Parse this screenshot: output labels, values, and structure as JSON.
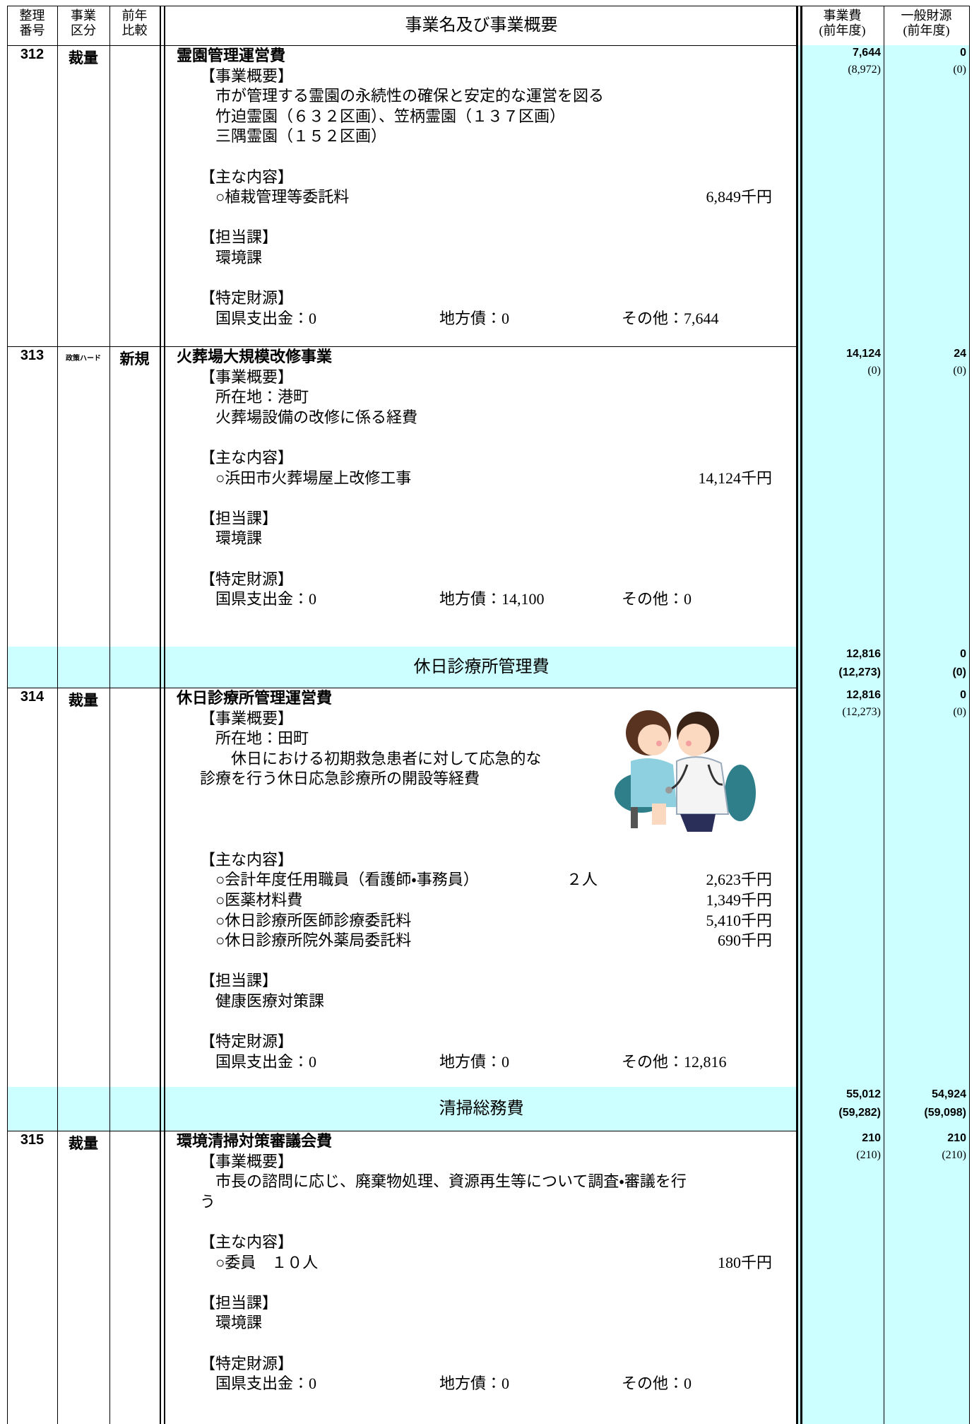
{
  "header": {
    "no": [
      "整理",
      "番号"
    ],
    "kubun": [
      "事業",
      "区分"
    ],
    "hikaku": [
      "前年",
      "比較"
    ],
    "title": "事業名及び事業概要",
    "cost": [
      "事業費",
      "(前年度)"
    ],
    "general": [
      "一般財源",
      "(前年度)"
    ]
  },
  "rows": [
    {
      "no": "312",
      "kubun": "裁量",
      "title": "霊園管理運営費",
      "cost": "7,644",
      "cost_prev": "(8,972)",
      "general": "0",
      "general_prev": "(0)",
      "overview": {
        "heading": "【事業概要】",
        "lines": [
          "　市が管理する霊園の永続性の確保と安定的な運営を図る",
          "　竹迫霊園（６３２区画）、笠柄霊園（１３７区画）",
          "　三隅霊園（１５２区画）"
        ]
      },
      "contents": {
        "heading": "【主な内容】",
        "items": [
          {
            "label": "○植栽管理等委託料",
            "amount": "6,849千円"
          }
        ]
      },
      "dept": {
        "heading": "【担当課】",
        "name": "環境課"
      },
      "funding": {
        "heading": "【特定財源】",
        "items": [
          "国県支出金：0",
          "地方債：0",
          "その他：7,644"
        ]
      }
    },
    {
      "no": "313",
      "kubun": "政策ハード",
      "hikaku": "新規",
      "title": "火葬場大規模改修事業",
      "cost": "14,124",
      "cost_prev": "(0)",
      "general": "24",
      "general_prev": "(0)",
      "overview": {
        "heading": "【事業概要】",
        "lines": [
          "　所在地：港町",
          "　火葬場設備の改修に係る経費"
        ]
      },
      "contents": {
        "heading": "【主な内容】",
        "items": [
          {
            "label": "○浜田市火葬場屋上改修工事",
            "amount": "14,124千円"
          }
        ]
      },
      "dept": {
        "heading": "【担当課】",
        "name": "環境課"
      },
      "funding": {
        "heading": "【特定財源】",
        "items": [
          "国県支出金：0",
          "地方債：14,100",
          "その他：0"
        ]
      }
    },
    {
      "group": "休日診療所管理費",
      "cost": "12,816",
      "cost_prev": "(12,273)",
      "general": "0",
      "general_prev": "(0)"
    },
    {
      "no": "314",
      "kubun": "裁量",
      "title": "休日診療所管理運営費",
      "cost": "12,816",
      "cost_prev": "(12,273)",
      "general": "0",
      "general_prev": "(0)",
      "overview": {
        "heading": "【事業概要】",
        "lines": [
          "　所在地：田町",
          "　　休日における初期救急患者に対して応急的な",
          "診療を行う休日応急診療所の開設等経費"
        ]
      },
      "contents": {
        "heading": "【主な内容】",
        "items": [
          {
            "label": "○会計年度任用職員（看護師・事務員）",
            "count": "２人",
            "amount": "2,623千円"
          },
          {
            "label": "○医薬材料費",
            "amount": "1,349千円"
          },
          {
            "label": "○休日診療所医師診療委託料",
            "amount": "5,410千円"
          },
          {
            "label": "○休日診療所院外薬局委託料",
            "amount": "690千円"
          }
        ]
      },
      "dept": {
        "heading": "【担当課】",
        "name": "健康医療対策課"
      },
      "funding": {
        "heading": "【特定財源】",
        "items": [
          "国県支出金：0",
          "地方債：0",
          "その他：12,816"
        ]
      }
    },
    {
      "group": "清掃総務費",
      "cost": "55,012",
      "cost_prev": "(59,282)",
      "general": "54,924",
      "general_prev": "(59,098)"
    },
    {
      "no": "315",
      "kubun": "裁量",
      "title": "環境清掃対策審議会費",
      "cost": "210",
      "cost_prev": "(210)",
      "general": "210",
      "general_prev": "(210)",
      "overview": {
        "heading": "【事業概要】",
        "lines": [
          "　市長の諮問に応じ、廃棄物処理、資源再生等について調査・審議を行",
          "う"
        ]
      },
      "contents": {
        "heading": "【主な内容】",
        "items": [
          {
            "label": "○委員　１０人",
            "amount": "180千円"
          }
        ]
      },
      "dept": {
        "heading": "【担当課】",
        "name": "環境課"
      },
      "funding": {
        "heading": "【特定財源】",
        "items": [
          "国県支出金：0",
          "地方債：0",
          "その他：0"
        ]
      }
    }
  ]
}
